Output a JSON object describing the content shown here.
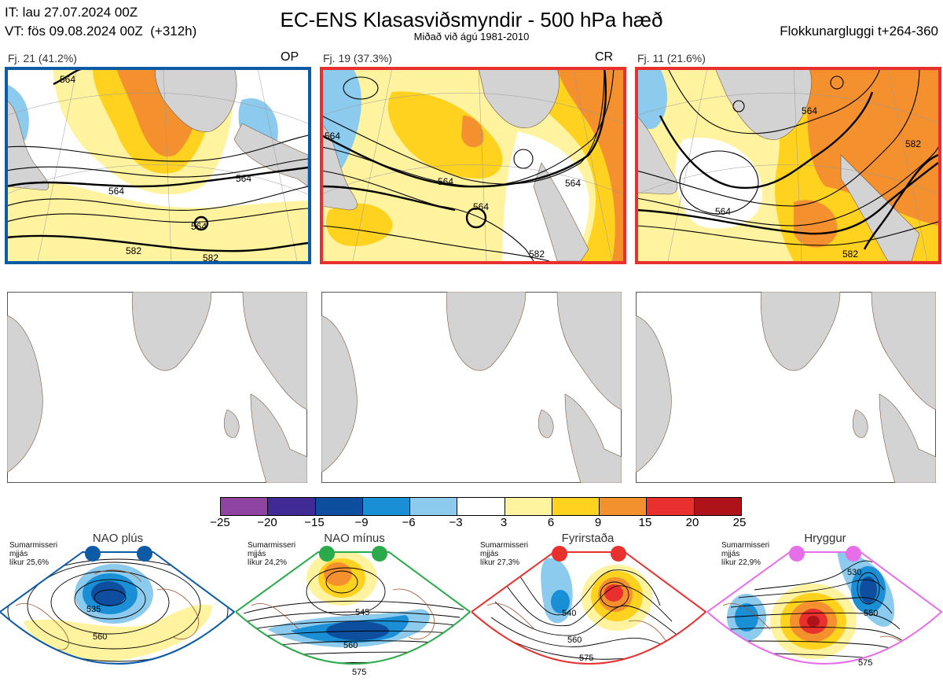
{
  "header": {
    "it_line": "IT: lau 27.07.2024 00Z",
    "vt_line": "VT: fös 09.08.2024 00Z  (+312h)",
    "title": "EC-ENS Klasasviðsmyndir - 500 hPa hæð",
    "subtitle": "Miðað við ágú 1981-2010",
    "window": "Flokkunargluggi t+264-360"
  },
  "clusters": [
    {
      "label": "Fj. 21 (41.2%)",
      "code": "OP",
      "frame_color": "#0d5aa7"
    },
    {
      "label": "Fj. 19 (37.3%)",
      "code": "CR",
      "frame_color": "#e8302e"
    },
    {
      "label": "Fj. 11 (21.6%)",
      "code": "",
      "frame_color": "#e8302e"
    }
  ],
  "contour_labels": {
    "c1": [
      "564",
      "564",
      "564",
      "564",
      "582",
      "582"
    ],
    "c2": [
      "564",
      "564",
      "564",
      "564",
      "582"
    ],
    "c3": [
      "564",
      "564",
      "582",
      "582"
    ]
  },
  "colorbar": {
    "ticks": [
      "−25",
      "−20",
      "−15",
      "−9",
      "−6",
      "−3",
      "3",
      "6",
      "9",
      "15",
      "20",
      "25"
    ],
    "colors": [
      "#8e44a0",
      "#3f2a96",
      "#0d4f9e",
      "#1a8fd6",
      "#8ccbee",
      "#ffffff",
      "#fff3a0",
      "#ffd21f",
      "#f5902f",
      "#e8302e",
      "#b0121a"
    ]
  },
  "regimes": [
    {
      "name": "NAO plús",
      "season": "Sumarmisseri",
      "mean": "mjjás",
      "prob": "líkur 25,6%",
      "color": "#0d5aa7",
      "labels": [
        "535",
        "560"
      ]
    },
    {
      "name": "NAO mínus",
      "season": "Sumarmisseri",
      "mean": "mjjás",
      "prob": "líkur 24,2%",
      "color": "#2aaa4a",
      "labels": [
        "545",
        "560",
        "575"
      ]
    },
    {
      "name": "Fyrirstaða",
      "season": "Sumarmisseri",
      "mean": "mjjás",
      "prob": "líkur 27,3%",
      "color": "#e8302e",
      "labels": [
        "540",
        "560",
        "575"
      ]
    },
    {
      "name": "Hryggur",
      "season": "Sumarmisseri",
      "mean": "mjjás",
      "prob": "líkur 22,9%",
      "color": "#e66ee8",
      "labels": [
        "530",
        "550",
        "575"
      ]
    }
  ]
}
